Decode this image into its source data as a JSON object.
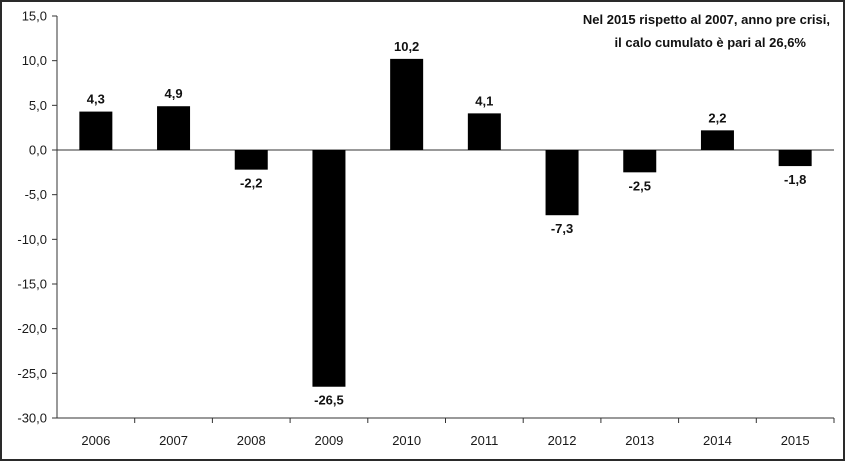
{
  "chart_data": {
    "type": "bar",
    "categories": [
      "2006",
      "2007",
      "2008",
      "2009",
      "2010",
      "2011",
      "2012",
      "2013",
      "2014",
      "2015"
    ],
    "values": [
      4.3,
      4.9,
      -2.2,
      -26.5,
      10.2,
      4.1,
      -7.3,
      -2.5,
      2.2,
      -1.8
    ],
    "data_labels": [
      "4,3",
      "4,9",
      "-2,2",
      "-26,5",
      "10,2",
      "4,1",
      "-7,3",
      "-2,5",
      "2,2",
      "-1,8"
    ],
    "ylim": [
      -30,
      15
    ],
    "yticks": [
      15,
      10,
      5,
      0,
      -5,
      -10,
      -15,
      -20,
      -25,
      -30
    ],
    "ytick_labels": [
      "15,0",
      "10,0",
      "5,0",
      "0,0",
      "-5,0",
      "-10,0",
      "-15,0",
      "-20,0",
      "-25,0",
      "-30,0"
    ],
    "title": "",
    "xlabel": "",
    "ylabel": "",
    "grid": false,
    "bar_color": "#000000",
    "annotation": {
      "lines": [
        "Nel 2015 rispetto al 2007, anno pre crisi,",
        "il calo cumulato è pari al 26,6%"
      ],
      "placement": "top-right"
    }
  }
}
